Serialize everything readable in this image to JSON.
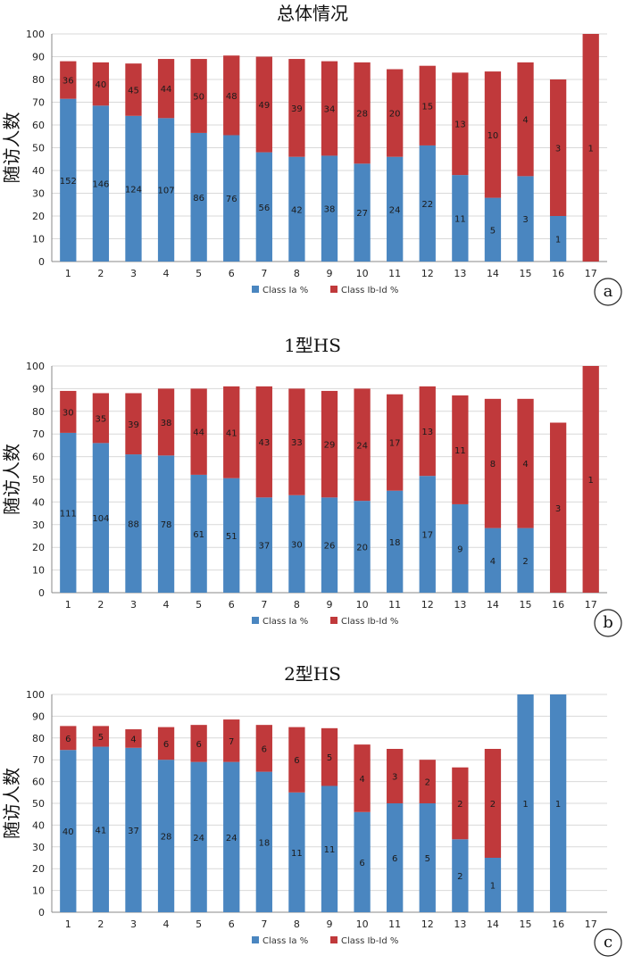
{
  "colors": {
    "class_ia": "#4a86c0",
    "class_ib_id": "#c0393b",
    "grid": "#d9d9d9",
    "axis": "#888888"
  },
  "chart_data": [
    {
      "type": "bar",
      "stacked": true,
      "title": "总体情况",
      "ylabel": "随访人数",
      "panel_label": "a",
      "ylim": [
        0,
        100
      ],
      "yticks": [
        0,
        10,
        20,
        30,
        40,
        50,
        60,
        70,
        80,
        90,
        100
      ],
      "categories": [
        "1",
        "2",
        "3",
        "4",
        "5",
        "6",
        "7",
        "8",
        "9",
        "10",
        "11",
        "12",
        "13",
        "14",
        "15",
        "16",
        "17"
      ],
      "legend": [
        "Class Ia %",
        "Class Ib-Id %"
      ],
      "series": [
        {
          "name": "Class Ia %",
          "values": [
            71.5,
            68.5,
            64,
            63,
            56.5,
            55.5,
            48,
            46,
            46.5,
            43,
            46,
            51,
            38,
            28,
            37.5,
            20,
            0
          ],
          "labels": [
            "152",
            "146",
            "124",
            "107",
            "86",
            "76",
            "56",
            "42",
            "38",
            "27",
            "24",
            "22",
            "11",
            "5",
            "3",
            "1",
            ""
          ]
        },
        {
          "name": "Class Ib-Id %",
          "values": [
            16.5,
            19,
            23,
            26,
            32.5,
            35,
            42,
            43,
            41.5,
            44.5,
            38.5,
            35,
            45,
            55.5,
            50,
            60,
            100
          ],
          "labels": [
            "36",
            "40",
            "45",
            "44",
            "50",
            "48",
            "49",
            "39",
            "34",
            "28",
            "20",
            "15",
            "13",
            "10",
            "4",
            "3",
            "1"
          ]
        }
      ]
    },
    {
      "type": "bar",
      "stacked": true,
      "title": "1型HS",
      "ylabel": "随访人数",
      "panel_label": "b",
      "ylim": [
        0,
        100
      ],
      "yticks": [
        0,
        10,
        20,
        30,
        40,
        50,
        60,
        70,
        80,
        90,
        100
      ],
      "categories": [
        "1",
        "2",
        "3",
        "4",
        "5",
        "6",
        "7",
        "8",
        "9",
        "10",
        "11",
        "12",
        "13",
        "14",
        "15",
        "16",
        "17"
      ],
      "legend": [
        "Class Ia %",
        "Class Ib-Id %"
      ],
      "series": [
        {
          "name": "Class Ia %",
          "values": [
            70.5,
            66,
            61,
            60.5,
            52,
            50.5,
            42,
            43,
            42,
            40.5,
            45,
            51.5,
            39,
            28.5,
            28.5,
            0,
            0
          ],
          "labels": [
            "111",
            "104",
            "88",
            "78",
            "61",
            "51",
            "37",
            "30",
            "26",
            "20",
            "18",
            "17",
            "9",
            "4",
            "2",
            "",
            ""
          ]
        },
        {
          "name": "Class Ib-Id %",
          "values": [
            18.5,
            22,
            27,
            29.5,
            38,
            40.5,
            49,
            47,
            47,
            49.5,
            42.5,
            39.5,
            48,
            57,
            57,
            75,
            100
          ],
          "labels": [
            "30",
            "35",
            "39",
            "38",
            "44",
            "41",
            "43",
            "33",
            "29",
            "24",
            "17",
            "13",
            "11",
            "8",
            "4",
            "3",
            "1"
          ]
        }
      ]
    },
    {
      "type": "bar",
      "stacked": true,
      "title": "2型HS",
      "ylabel": "随访人数",
      "panel_label": "c",
      "ylim": [
        0,
        100
      ],
      "yticks": [
        0,
        10,
        20,
        30,
        40,
        50,
        60,
        70,
        80,
        90,
        100
      ],
      "categories": [
        "1",
        "2",
        "3",
        "4",
        "5",
        "6",
        "7",
        "8",
        "9",
        "10",
        "11",
        "12",
        "13",
        "14",
        "15",
        "16",
        "17"
      ],
      "legend": [
        "Class Ia %",
        "Class Ib-Id %"
      ],
      "series": [
        {
          "name": "Class Ia %",
          "values": [
            74.5,
            76,
            75.5,
            70,
            69,
            69,
            64.5,
            55,
            58,
            46,
            50,
            50,
            33.5,
            25,
            100,
            100,
            0
          ],
          "labels": [
            "40",
            "41",
            "37",
            "28",
            "24",
            "24",
            "18",
            "11",
            "11",
            "6",
            "6",
            "5",
            "2",
            "1",
            "1",
            "1",
            ""
          ]
        },
        {
          "name": "Class Ib-Id %",
          "values": [
            11,
            9.5,
            8.5,
            15,
            17,
            19.5,
            21.5,
            30,
            26.5,
            31,
            25,
            20,
            33,
            50,
            0,
            0,
            0
          ],
          "labels": [
            "6",
            "5",
            "4",
            "6",
            "6",
            "7",
            "6",
            "6",
            "5",
            "4",
            "3",
            "2",
            "2",
            "2",
            "",
            "",
            ""
          ]
        }
      ]
    }
  ]
}
